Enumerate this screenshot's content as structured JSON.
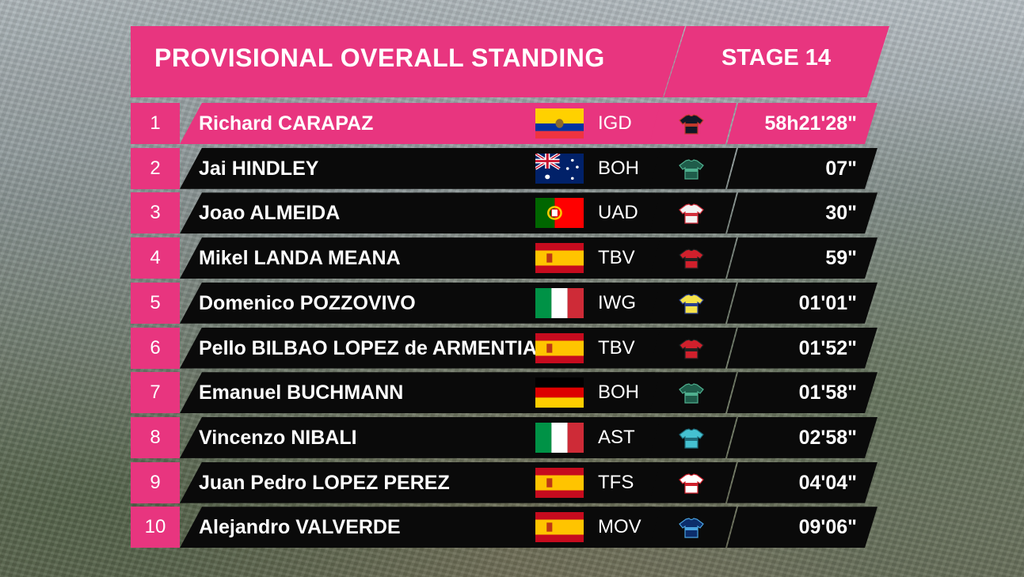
{
  "header": {
    "title": "PROVISIONAL OVERALL STANDING",
    "stage": "STAGE 14",
    "accent": "#e8357f"
  },
  "riders": [
    {
      "rank": "1",
      "name": "Richard CARAPAZ",
      "flag": "ecuador",
      "team": "IGD",
      "jersey": "jersey-igd",
      "time": "58h21'28\""
    },
    {
      "rank": "2",
      "name": "Jai HINDLEY",
      "flag": "australia",
      "team": "BOH",
      "jersey": "jersey-boh",
      "time": "07\""
    },
    {
      "rank": "3",
      "name": "Joao ALMEIDA",
      "flag": "portugal",
      "team": "UAD",
      "jersey": "jersey-uad",
      "time": "30\""
    },
    {
      "rank": "4",
      "name": "Mikel LANDA MEANA",
      "flag": "spain",
      "team": "TBV",
      "jersey": "jersey-tbv",
      "time": "59\""
    },
    {
      "rank": "5",
      "name": "Domenico POZZOVIVO",
      "flag": "italy",
      "team": "IWG",
      "jersey": "jersey-iwg",
      "time": "01'01\""
    },
    {
      "rank": "6",
      "name": "Pello BILBAO LOPEZ de ARMENTIA",
      "flag": "spain",
      "team": "TBV",
      "jersey": "jersey-tbv",
      "time": "01'52\""
    },
    {
      "rank": "7",
      "name": "Emanuel BUCHMANN",
      "flag": "germany",
      "team": "BOH",
      "jersey": "jersey-boh",
      "time": "01'58\""
    },
    {
      "rank": "8",
      "name": "Vincenzo NIBALI",
      "flag": "italy",
      "team": "AST",
      "jersey": "jersey-ast",
      "time": "02'58\""
    },
    {
      "rank": "9",
      "name": "Juan Pedro LOPEZ PEREZ",
      "flag": "spain",
      "team": "TFS",
      "jersey": "jersey-tfs",
      "time": "04'04\""
    },
    {
      "rank": "10",
      "name": "Alejandro VALVERDE",
      "flag": "spain",
      "team": "MOV",
      "jersey": "jersey-mov",
      "time": "09'06\""
    }
  ]
}
